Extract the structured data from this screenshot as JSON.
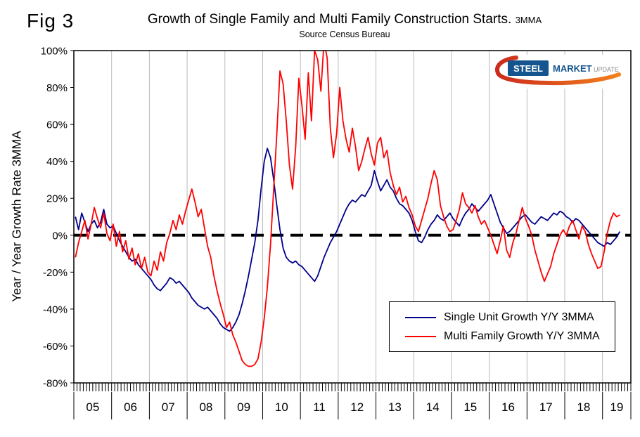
{
  "fig_label": "Fig 3",
  "title": "Growth of Single Family and Multi Family Construction Starts.",
  "title_suffix": "3MMA",
  "subtitle": "Source Census Bureau",
  "y_axis_title": "Year / Year Growth Rate 3MMA",
  "logo": {
    "steel": "STEEL",
    "market": "MARKET",
    "update": "UPDATE"
  },
  "colors": {
    "single_series": "#00008b",
    "multi_series": "#ff0000",
    "zero_line": "#000000",
    "gridline": "#bbbbbb",
    "logo_blue": "#15558f",
    "logo_red": "#cc2b1d",
    "logo_orange": "#f2811d",
    "logo_gray": "#8a8a8a"
  },
  "chart_data": {
    "type": "line",
    "title": "Growth of Single Family and Multi Family Construction Starts. 3MMA",
    "subtitle": "Source Census Bureau",
    "ylabel": "Year / Year Growth Rate 3MMA",
    "x_range": [
      2005,
      2019.75
    ],
    "x_monthly_start": "2005-01",
    "x_monthly_end": "2019-06",
    "x_tick_labels": [
      "05",
      "06",
      "07",
      "08",
      "09",
      "10",
      "11",
      "12",
      "13",
      "14",
      "15",
      "16",
      "17",
      "18",
      "19"
    ],
    "ylim": [
      -80,
      100
    ],
    "y_ticks": [
      100,
      80,
      60,
      40,
      20,
      0,
      -20,
      -40,
      -60,
      -80
    ],
    "y_tick_labels": [
      "100%",
      "80%",
      "60%",
      "40%",
      "20%",
      "0%",
      "-20%",
      "-40%",
      "-60%",
      "-80%"
    ],
    "zero_line": {
      "style": "dashed",
      "color": "#000000",
      "width": 4
    },
    "grid": "vertical-year-gridlines",
    "legend_position": "inside-bottom-right",
    "series": [
      {
        "name": "Single Unit Growth Y/Y 3MMA",
        "color": "#00008b",
        "values": [
          10,
          3,
          12,
          7,
          2,
          6,
          8,
          4,
          7,
          14,
          6,
          4,
          5,
          1,
          -3,
          -6,
          -9,
          -12,
          -14,
          -13,
          -16,
          -18,
          -20,
          -22,
          -24,
          -27,
          -29,
          -30,
          -28,
          -26,
          -23,
          -24,
          -26,
          -25,
          -27,
          -29,
          -31,
          -34,
          -36,
          -38,
          -39,
          -40,
          -39,
          -41,
          -43,
          -45,
          -48,
          -50,
          -51,
          -52,
          -50,
          -47,
          -43,
          -37,
          -30,
          -22,
          -13,
          -4,
          8,
          25,
          40,
          47,
          42,
          30,
          16,
          3,
          -7,
          -12,
          -14,
          -15,
          -14,
          -16,
          -17,
          -19,
          -21,
          -23,
          -25,
          -22,
          -17,
          -12,
          -8,
          -4,
          -1,
          2,
          6,
          10,
          14,
          17,
          19,
          18,
          20,
          22,
          21,
          24,
          27,
          35,
          29,
          24,
          27,
          30,
          26,
          24,
          20,
          17,
          16,
          14,
          12,
          8,
          2,
          -3,
          -4,
          -1,
          3,
          6,
          8,
          11,
          9,
          8,
          10,
          12,
          9,
          7,
          5,
          9,
          12,
          14,
          17,
          15,
          13,
          15,
          17,
          19,
          22,
          17,
          12,
          7,
          4,
          1,
          2,
          4,
          6,
          8,
          10,
          11,
          9,
          7,
          6,
          8,
          10,
          9,
          8,
          10,
          12,
          11,
          13,
          12,
          10,
          9,
          7,
          9,
          8,
          6,
          4,
          2,
          0,
          -2,
          -4,
          -5,
          -6,
          -4,
          -5,
          -3,
          -1,
          2
        ]
      },
      {
        "name": "Multi Family Growth Y/Y 3MMA",
        "color": "#ff0000",
        "values": [
          -12,
          -4,
          2,
          8,
          -2,
          6,
          15,
          9,
          4,
          12,
          1,
          -3,
          6,
          -6,
          2,
          -9,
          -3,
          -13,
          -7,
          -16,
          -10,
          -18,
          -12,
          -20,
          -22,
          -14,
          -19,
          -9,
          -14,
          -4,
          1,
          8,
          3,
          11,
          6,
          13,
          19,
          25,
          18,
          10,
          14,
          4,
          -6,
          -12,
          -22,
          -30,
          -37,
          -43,
          -50,
          -47,
          -54,
          -58,
          -63,
          -68,
          -70,
          -71,
          -71,
          -70,
          -67,
          -58,
          -45,
          -28,
          -5,
          25,
          55,
          89,
          82,
          62,
          38,
          25,
          48,
          85,
          70,
          52,
          88,
          62,
          100,
          95,
          78,
          105,
          96,
          58,
          42,
          55,
          80,
          62,
          52,
          45,
          58,
          48,
          35,
          40,
          47,
          53,
          44,
          38,
          50,
          53,
          42,
          46,
          34,
          27,
          22,
          26,
          18,
          21,
          15,
          11,
          5,
          2,
          8,
          14,
          20,
          28,
          35,
          30,
          16,
          10,
          5,
          2,
          3,
          8,
          14,
          23,
          17,
          15,
          12,
          16,
          10,
          6,
          8,
          4,
          0,
          -5,
          -10,
          -3,
          5,
          -8,
          -12,
          -4,
          1,
          8,
          15,
          9,
          5,
          0,
          -8,
          -14,
          -20,
          -25,
          -21,
          -17,
          -10,
          -5,
          0,
          3,
          0,
          5,
          8,
          3,
          -2,
          5,
          2,
          -5,
          -10,
          -14,
          -18,
          -17,
          -9,
          1,
          8,
          12,
          10,
          11
        ]
      }
    ]
  }
}
